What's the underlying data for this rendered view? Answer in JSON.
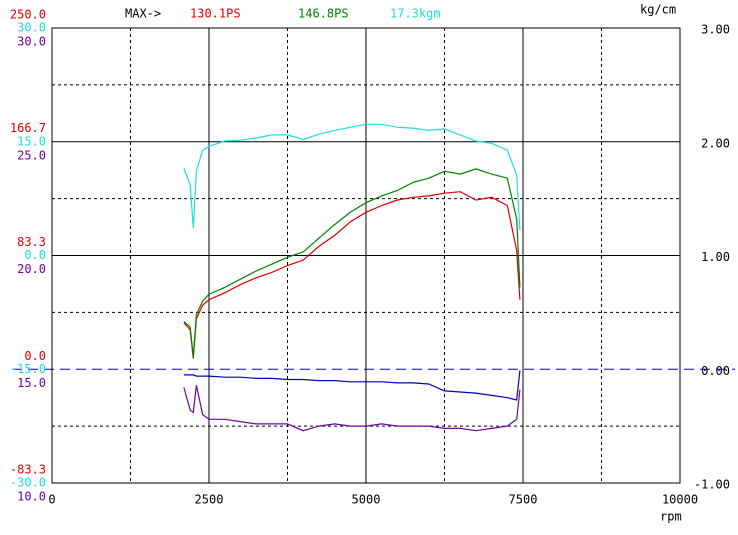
{
  "chart_data": {
    "type": "line",
    "header": {
      "label": "MAX->",
      "items": [
        {
          "text": "130.1PS",
          "color": "#e00000"
        },
        {
          "text": "146.8PS",
          "color": "#008000"
        },
        {
          "text": "17.3kgm",
          "color": "#22dddd"
        }
      ]
    },
    "xlabel": "rpm",
    "y2label": "kg/cm",
    "xlim": [
      0,
      10000
    ],
    "xticks": [
      0,
      2500,
      5000,
      7500,
      10000
    ],
    "xgrid_minor": [
      1250,
      3750,
      6250,
      8750
    ],
    "y_axes": [
      {
        "color": "#e00000",
        "lim": [
          -83.3,
          250
        ],
        "ticks": [
          {
            "value": -83.3,
            "label": "-83.3"
          },
          {
            "value": 0,
            "label": "0.0"
          },
          {
            "value": 83.3,
            "label": "83.3"
          },
          {
            "value": 166.7,
            "label": "166.7"
          },
          {
            "value": 250,
            "label": "250.0"
          }
        ]
      },
      {
        "color": "#22dddd",
        "lim": [
          -30,
          30
        ],
        "ticks": [
          {
            "value": -30,
            "label": "-30.0"
          },
          {
            "value": -15,
            "label": "-15.0"
          },
          {
            "value": 0,
            "label": "0.0"
          },
          {
            "value": 15,
            "label": "15.0"
          },
          {
            "value": 30,
            "label": "30.0"
          }
        ]
      },
      {
        "color": "#7000a0",
        "lim": [
          10,
          30
        ],
        "ticks": [
          {
            "value": 10,
            "label": "10.0"
          },
          {
            "value": 15,
            "label": "15.0"
          },
          {
            "value": 20,
            "label": "20.0"
          },
          {
            "value": 25,
            "label": "25.0"
          },
          {
            "value": 30,
            "label": "30.0"
          }
        ]
      }
    ],
    "y2lim": [
      -1,
      3
    ],
    "y2ticks": [
      {
        "value": -1,
        "label": "-1.00"
      },
      {
        "value": 0,
        "label": "0.00"
      },
      {
        "value": 1,
        "label": "1.00"
      },
      {
        "value": 2,
        "label": "2.00"
      },
      {
        "value": 3,
        "label": "3.00"
      }
    ],
    "y2grid_minor": [
      -0.5,
      0.5,
      1.5,
      2.5
    ],
    "x": [
      2100,
      2200,
      2250,
      2300,
      2400,
      2500,
      2750,
      3000,
      3250,
      3500,
      3750,
      4000,
      4250,
      4500,
      4750,
      5000,
      5250,
      5500,
      5750,
      6000,
      6250,
      6500,
      6750,
      7000,
      7250,
      7400,
      7450
    ],
    "series": [
      {
        "color": "#e00000",
        "axis": 0,
        "values": [
          34,
          29,
          8,
          37,
          47,
          51,
          56,
          62,
          67,
          71,
          76,
          80,
          90,
          98,
          108,
          115,
          120,
          124,
          126,
          127,
          129,
          130.1,
          124,
          126,
          120,
          87,
          51
        ]
      },
      {
        "color": "#008000",
        "axis": 0,
        "values": [
          35,
          31,
          9,
          40,
          50,
          55,
          60,
          66,
          72,
          77,
          82,
          86,
          96,
          106,
          115,
          122,
          127,
          131,
          137,
          140,
          145,
          143,
          146.8,
          143,
          140,
          110,
          60
        ]
      },
      {
        "color": "#22dddd",
        "axis": 1,
        "values": [
          11.5,
          9.3,
          3.6,
          11.2,
          13.9,
          14.4,
          15.1,
          15.2,
          15.5,
          15.9,
          15.9,
          15.3,
          16.0,
          16.5,
          16.9,
          17.3,
          17.3,
          16.9,
          16.8,
          16.5,
          16.7,
          15.9,
          15.1,
          14.8,
          13.9,
          10.6,
          3.3
        ]
      },
      {
        "color": "#7000a0",
        "axis": 2,
        "values": [
          14.2,
          13.2,
          13.1,
          14.3,
          13.0,
          12.8,
          12.8,
          12.7,
          12.6,
          12.6,
          12.6,
          12.3,
          12.5,
          12.6,
          12.5,
          12.5,
          12.6,
          12.5,
          12.5,
          12.5,
          12.4,
          12.4,
          12.3,
          12.4,
          12.5,
          12.8,
          14.1
        ]
      },
      {
        "color": "#0000c0",
        "axis": "y2",
        "values": [
          -0.05,
          -0.05,
          -0.05,
          -0.06,
          -0.06,
          -0.06,
          -0.07,
          -0.07,
          -0.08,
          -0.08,
          -0.09,
          -0.09,
          -0.1,
          -0.1,
          -0.11,
          -0.11,
          -0.11,
          -0.12,
          -0.12,
          -0.13,
          -0.19,
          -0.2,
          -0.21,
          -0.23,
          -0.25,
          -0.27,
          -0.01
        ]
      }
    ]
  }
}
